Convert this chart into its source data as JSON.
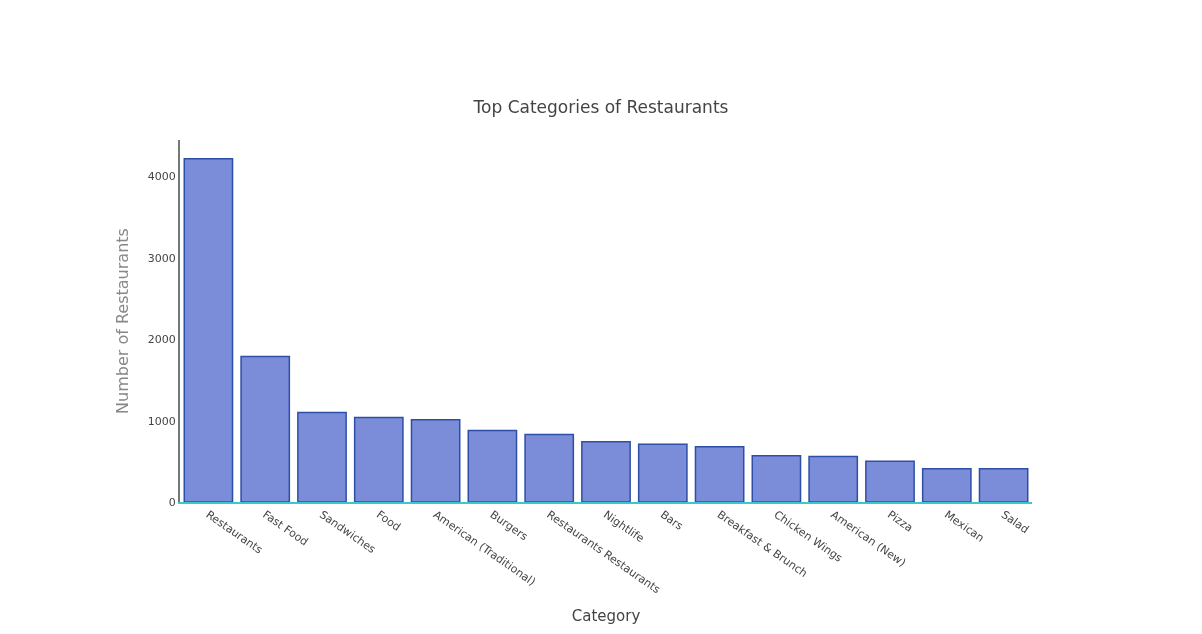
{
  "chart_data": {
    "type": "bar",
    "title": "Top Categories of Restaurants",
    "xlabel": "Category",
    "ylabel": "Number of Restaurants",
    "categories": [
      "Restaurants",
      "Fast Food",
      "Sandwiches",
      "Food",
      "American (Traditional)",
      "Burgers",
      "Restaurants Restaurants",
      "Nightlife",
      "Bars",
      "Breakfast & Brunch",
      "Chicken Wings",
      "American (New)",
      "Pizza",
      "Mexican",
      "Salad"
    ],
    "values": [
      4220,
      1790,
      1100,
      1040,
      1010,
      880,
      830,
      740,
      710,
      680,
      570,
      560,
      500,
      410,
      410
    ],
    "color": "#7b8cd8",
    "ylim": [
      0,
      4450
    ],
    "yticks": [
      0,
      1000,
      2000,
      3000,
      4000
    ]
  }
}
